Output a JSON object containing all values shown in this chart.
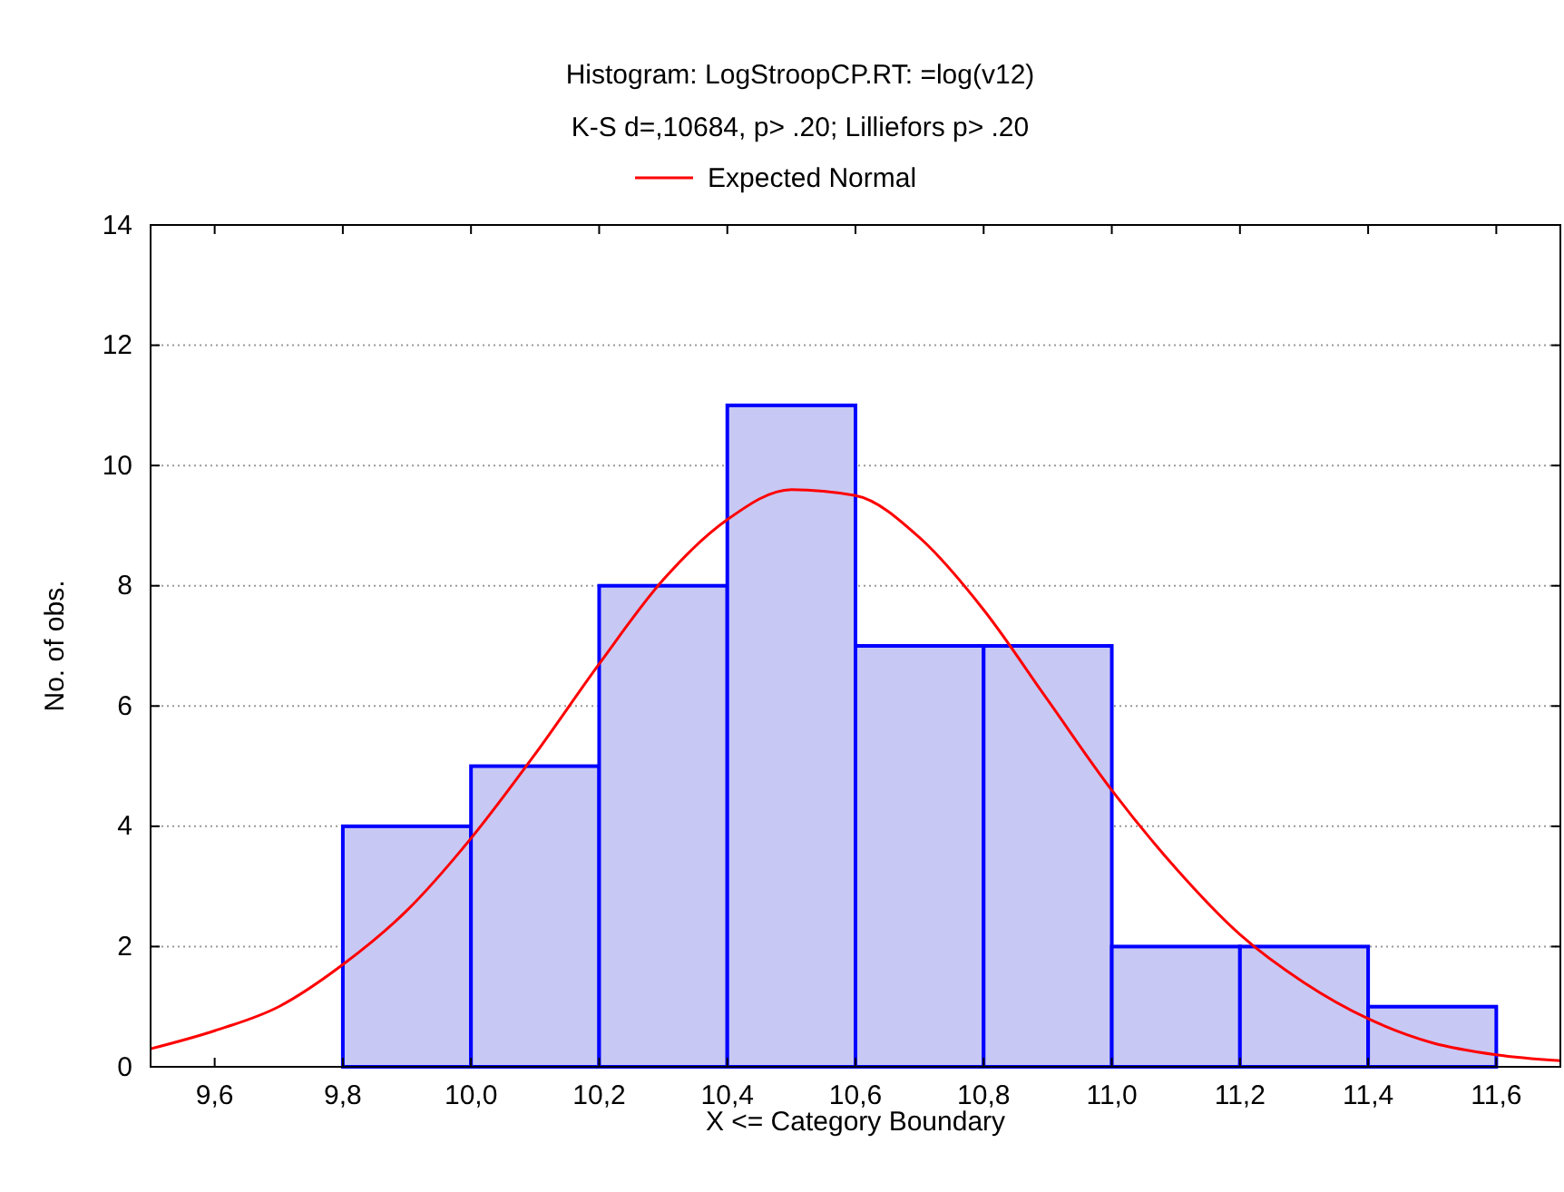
{
  "chart_data": {
    "type": "histogram",
    "title": "Histogram: LogStroopCP.RT: =log(v12)",
    "subtitle": "K-S d=,10684, p> .20; Lilliefors p> .20",
    "xlabel": "X <= Category Boundary",
    "ylabel": "No. of obs.",
    "bins": [
      9.8,
      10.0,
      10.2,
      10.4,
      10.6,
      10.8,
      11.0,
      11.2,
      11.4,
      11.6
    ],
    "values": [
      4,
      5,
      8,
      11,
      7,
      7,
      2,
      2,
      1
    ],
    "color": "#c8c8f4",
    "series": [
      {
        "name": "Expected Normal",
        "type": "line",
        "color": "#ff0000",
        "x": [
          9.5,
          9.6,
          9.7,
          9.8,
          9.9,
          10.0,
          10.1,
          10.2,
          10.3,
          10.4,
          10.5,
          10.6,
          10.7,
          10.8,
          10.9,
          11.0,
          11.1,
          11.2,
          11.3,
          11.4,
          11.5,
          11.6,
          11.7
        ],
        "values": [
          0.3,
          0.6,
          1.0,
          1.7,
          2.6,
          3.8,
          5.2,
          6.7,
          8.1,
          9.1,
          9.6,
          9.5,
          8.8,
          7.6,
          6.1,
          4.6,
          3.3,
          2.2,
          1.4,
          0.8,
          0.4,
          0.2,
          0.1
        ]
      }
    ],
    "xlim": [
      9.5,
      11.7
    ],
    "xticks": [
      {
        "value": 9.6,
        "label": "9,6"
      },
      {
        "value": 9.8,
        "label": "9,8"
      },
      {
        "value": 10.0,
        "label": "10,0"
      },
      {
        "value": 10.2,
        "label": "10,2"
      },
      {
        "value": 10.4,
        "label": "10,4"
      },
      {
        "value": 10.6,
        "label": "10,6"
      },
      {
        "value": 10.8,
        "label": "10,8"
      },
      {
        "value": 11.0,
        "label": "11,0"
      },
      {
        "value": 11.2,
        "label": "11,2"
      },
      {
        "value": 11.4,
        "label": "11,4"
      },
      {
        "value": 11.6,
        "label": "11,6"
      }
    ],
    "ylim": [
      0,
      14
    ],
    "yticks": [
      0,
      2,
      4,
      6,
      8,
      10,
      12,
      14
    ],
    "grid": "y",
    "legend": "top",
    "marker": "none",
    "line_style": "solid"
  }
}
